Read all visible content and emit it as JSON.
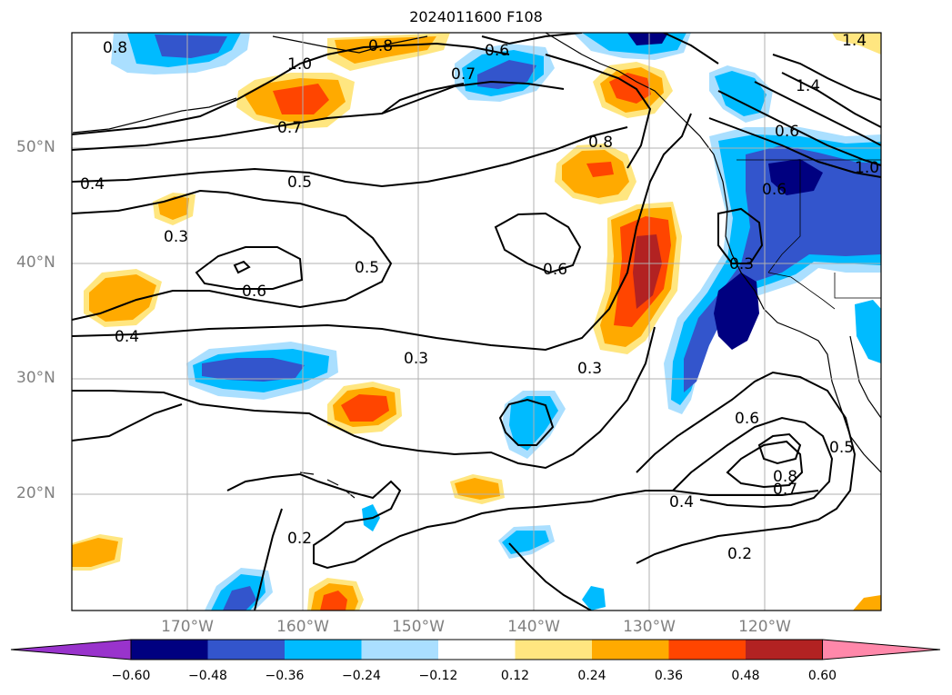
{
  "title": "2024011600 F108",
  "lat_labels": [
    "50°N",
    "40°N",
    "30°N",
    "20°N"
  ],
  "lon_labels": [
    "170°W",
    "160°W",
    "150°W",
    "140°W",
    "130°W",
    "120°W"
  ],
  "contour_labels": [
    "0.8",
    "1.0",
    "0.8",
    "0.6",
    "0.7",
    "1.4",
    "1.4",
    "0.7",
    "0.8",
    "0.6",
    "0.4",
    "0.5",
    "0.3",
    "0.6",
    "0.5",
    "0.6",
    "0.6",
    "0.3",
    "0.4",
    "0.3",
    "0.3",
    "0.6",
    "0.5",
    "0.8",
    "0.7",
    "0.4",
    "0.2",
    "0.2",
    "1.0"
  ],
  "colorbar": {
    "ticks": [
      "−0.60",
      "−0.48",
      "−0.36",
      "−0.24",
      "−0.12",
      "0.12",
      "0.24",
      "0.36",
      "0.48",
      "0.60"
    ],
    "colors": [
      "#9933cc",
      "#000080",
      "#3355cc",
      "#00bbff",
      "#aadfff",
      "#ffffff",
      "#ffe680",
      "#ffaa00",
      "#ff4500",
      "#b22222",
      "#ff88aa"
    ]
  },
  "fill_colors": {
    "pos1": "#ffe680",
    "pos2": "#ffaa00",
    "pos3": "#ff4500",
    "pos4": "#b22222",
    "neg1": "#aadfff",
    "neg2": "#00bbff",
    "neg3": "#3355cc",
    "neg4": "#000080"
  }
}
